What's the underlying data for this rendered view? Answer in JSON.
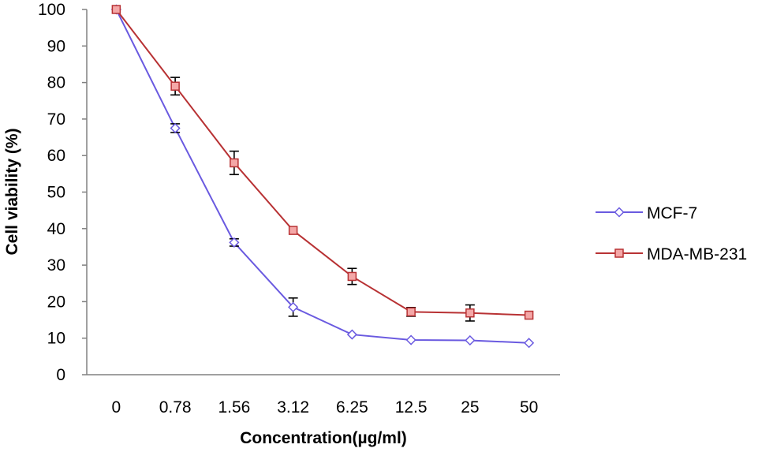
{
  "chart_data": {
    "type": "line",
    "categories": [
      "0",
      "0.78",
      "1.56",
      "3.12",
      "6.25",
      "12.5",
      "25",
      "50"
    ],
    "series": [
      {
        "name": "MCF-7",
        "values": [
          100,
          67.5,
          36.2,
          18.5,
          11.0,
          9.5,
          9.4,
          8.7
        ],
        "errors": [
          0.5,
          1.2,
          1.0,
          2.5,
          0.5,
          0.5,
          0.4,
          0.4
        ],
        "color": "#6a5ae0",
        "marker": "diamond"
      },
      {
        "name": "MDA-MB-231",
        "values": [
          100,
          79.0,
          58.0,
          39.5,
          26.9,
          17.2,
          16.9,
          16.3
        ],
        "errors": [
          0.5,
          2.4,
          3.2,
          0.8,
          2.2,
          1.2,
          2.2,
          0.6
        ],
        "color": "#b83234",
        "marker": "square"
      }
    ],
    "xlabel": "Concentration(µg/ml)",
    "ylabel": "Cell viability (%)",
    "ylim": [
      0,
      100
    ],
    "yticks": [
      "0",
      "10",
      "20",
      "30",
      "40",
      "50",
      "60",
      "70",
      "80",
      "90",
      "100"
    ],
    "grid": false,
    "legend_position": "right"
  }
}
